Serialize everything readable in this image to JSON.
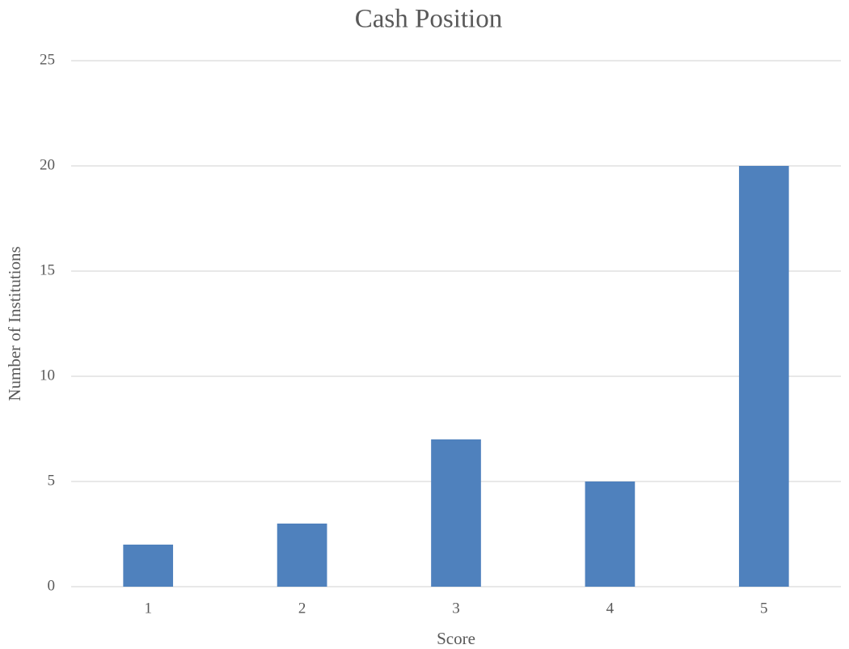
{
  "chart_data": {
    "type": "bar",
    "title": "Cash Position",
    "x_label": "Score",
    "y_label": "Number of Institutions",
    "categories": [
      "1",
      "2",
      "3",
      "4",
      "5"
    ],
    "values": [
      2,
      3,
      7,
      5,
      20
    ],
    "color": "#4f81bd",
    "ylim": [
      0,
      25
    ],
    "yticks": [
      0,
      5,
      10,
      15,
      20,
      25
    ],
    "grid": true
  }
}
